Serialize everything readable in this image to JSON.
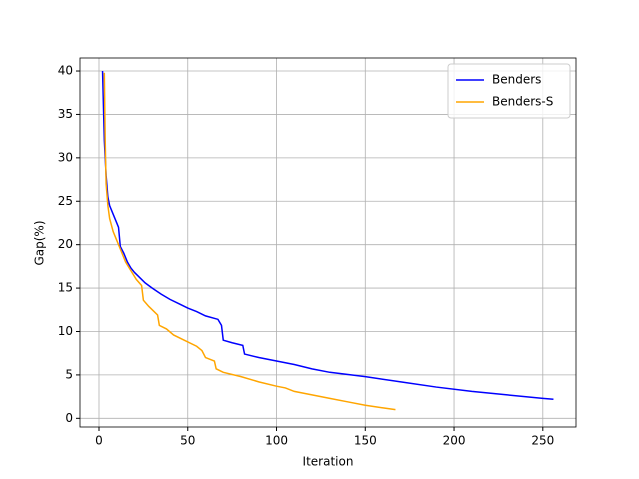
{
  "chart_data": {
    "type": "line",
    "xlabel": "Iteration",
    "ylabel": "Gap(%)",
    "xlim": [
      -10.7,
      268.7
    ],
    "ylim": [
      -1,
      41.5
    ],
    "xticks": [
      0,
      50,
      100,
      150,
      200,
      250
    ],
    "yticks": [
      0,
      5,
      10,
      15,
      20,
      25,
      30,
      35,
      40
    ],
    "grid": true,
    "legend": "upper right",
    "series": [
      {
        "name": "Benders",
        "color": "#0000ff",
        "x": [
          2,
          3,
          4,
          5,
          6,
          8,
          10,
          11,
          12,
          14,
          16,
          18,
          20,
          23,
          26,
          30,
          35,
          40,
          45,
          50,
          55,
          60,
          67,
          69,
          70,
          75,
          81,
          82,
          90,
          100,
          110,
          120,
          130,
          150,
          170,
          190,
          210,
          230,
          250,
          256
        ],
        "values": [
          40,
          32,
          28,
          25.5,
          24.5,
          23.5,
          22.5,
          22,
          19.8,
          19,
          18,
          17.3,
          16.8,
          16.2,
          15.6,
          15,
          14.3,
          13.7,
          13.2,
          12.7,
          12.3,
          11.8,
          11.4,
          10.7,
          9.0,
          8.7,
          8.4,
          7.4,
          7.0,
          6.6,
          6.2,
          5.7,
          5.3,
          4.8,
          4.2,
          3.6,
          3.1,
          2.7,
          2.3,
          2.2
        ]
      },
      {
        "name": "Benders-S",
        "color": "#ffa500",
        "x": [
          3,
          3.5,
          4,
          5,
          6,
          8,
          10,
          12,
          15,
          18,
          21,
          24,
          25,
          28,
          33,
          34,
          38,
          42,
          48,
          55,
          58,
          60,
          65,
          66,
          70,
          80,
          90,
          100,
          105,
          110,
          120,
          130,
          140,
          150,
          160,
          167
        ],
        "values": [
          39.8,
          32,
          27,
          24.5,
          23,
          21.5,
          20.5,
          19.5,
          18,
          17,
          16,
          15.3,
          13.6,
          12.9,
          11.9,
          10.7,
          10.3,
          9.6,
          9.0,
          8.3,
          7.8,
          7.0,
          6.6,
          5.7,
          5.3,
          4.8,
          4.2,
          3.7,
          3.5,
          3.1,
          2.7,
          2.3,
          1.9,
          1.5,
          1.2,
          1.0
        ]
      }
    ]
  }
}
